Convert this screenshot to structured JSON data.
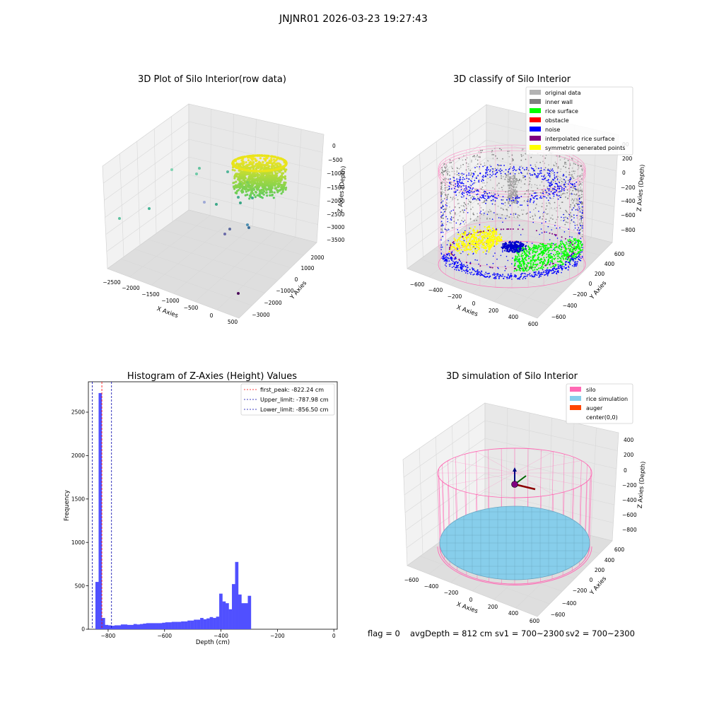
{
  "figure": {
    "suptitle": "JNJNR01 2026-03-23 19:27:43",
    "footer": {
      "flag": "flag = 0",
      "avg": "avgDepth = 812 cm",
      "sv1": "sv1 = 700~2300",
      "sv2": "sv2 = 700~2300"
    }
  },
  "colors": {
    "grid_line": "#d8d8d8",
    "pane": "#ededed",
    "hist_bar": "#5050ff",
    "first_peak": "#ff0000",
    "limit": "#0000aa",
    "silo": "#ff69b4",
    "rice": "#87ceeb",
    "auger": "#ff4500"
  },
  "chart_data": [
    {
      "type": "scatter",
      "title": "3D Plot of Silo Interior(row data)",
      "xlabel": "X Axies",
      "ylabel": "Y Axies",
      "zlabel": "Z Axies (Depth)",
      "x_ticks": [
        "−2500",
        "−2000",
        "−1500",
        "−1000",
        "−500",
        "0",
        "500"
      ],
      "y_ticks": [
        "2000",
        "1000",
        "0",
        "−1000",
        "−2000",
        "−3000"
      ],
      "z_ticks": [
        "0",
        "−500",
        "−1000",
        "−1500",
        "−2000",
        "−2500",
        "−3000",
        "−3500"
      ],
      "colormap": "viridis"
    },
    {
      "type": "scatter",
      "title": "3D classify of Silo Interior",
      "xlabel": "X Axies",
      "ylabel": "Y Axies",
      "zlabel": "Z Axies (Depth)",
      "x_ticks": [
        "−600",
        "−400",
        "−200",
        "0",
        "200",
        "400",
        "600"
      ],
      "y_ticks": [
        "600",
        "400",
        "200",
        "0",
        "−200",
        "−400",
        "−600"
      ],
      "z_ticks": [
        "200",
        "0",
        "−200",
        "−400",
        "−600",
        "−800"
      ],
      "z_top_partial": "00",
      "legend": [
        {
          "label": "original data",
          "color": "#b3b3b3"
        },
        {
          "label": "inner wall",
          "color": "#808080"
        },
        {
          "label": "rice surface",
          "color": "#00ff00"
        },
        {
          "label": "obstacle",
          "color": "#ff0000"
        },
        {
          "label": "noise",
          "color": "#0000ff"
        },
        {
          "label": "interpolated rice surface",
          "color": "#800080"
        },
        {
          "label": "symmetric generated points",
          "color": "#ffff00"
        }
      ]
    },
    {
      "type": "bar",
      "title": "Histogram of Z-Axies (Height) Values",
      "xlabel": "Depth (cm)",
      "ylabel": "Frequency",
      "xlim": [
        -870,
        12
      ],
      "ylim": [
        0,
        2850
      ],
      "x_ticks": [
        -800,
        -600,
        -400,
        -200,
        0
      ],
      "x_tick_labels": [
        "−800",
        "−600",
        "−400",
        "−200",
        "0"
      ],
      "y_ticks": [
        0,
        500,
        1000,
        1500,
        2000,
        2500
      ],
      "bin_start": -845,
      "bin_width": 11.25,
      "values": [
        545,
        2720,
        130,
        50,
        45,
        40,
        45,
        45,
        55,
        55,
        50,
        50,
        60,
        55,
        60,
        65,
        70,
        70,
        70,
        70,
        70,
        75,
        80,
        80,
        85,
        85,
        85,
        90,
        90,
        100,
        100,
        110,
        110,
        130,
        115,
        125,
        140,
        130,
        145,
        410,
        320,
        300,
        230,
        520,
        775,
        400,
        300,
        300,
        385
      ],
      "vlines": [
        {
          "label": "first_peak: -822.24 cm",
          "x": -822.24,
          "color": "#ff0000"
        },
        {
          "label": "Upper_limit: -787.98 cm",
          "x": -787.98,
          "color": "#0000aa"
        },
        {
          "label": "Lower_limit: -856.50 cm",
          "x": -856.5,
          "color": "#0000aa"
        }
      ]
    },
    {
      "type": "scatter",
      "title": "3D simulation of Silo Interior",
      "xlabel": "X Axies",
      "ylabel": "Y Axies",
      "zlabel": "Z Axies (Depth)",
      "x_ticks": [
        "−600",
        "−400",
        "−200",
        "0",
        "200",
        "400",
        "600"
      ],
      "y_ticks": [
        "600",
        "400",
        "200",
        "0",
        "−200",
        "−400",
        "−600"
      ],
      "z_ticks": [
        "400",
        "200",
        "0",
        "−200",
        "−400",
        "−600",
        "−800"
      ],
      "legend": [
        {
          "label": "silo",
          "color": "#ff69b4"
        },
        {
          "label": "rice simulation",
          "color": "#87ceeb"
        },
        {
          "label": "auger",
          "color": "#ff4500"
        },
        {
          "label": "center(0,0)",
          "color": ""
        }
      ]
    }
  ]
}
